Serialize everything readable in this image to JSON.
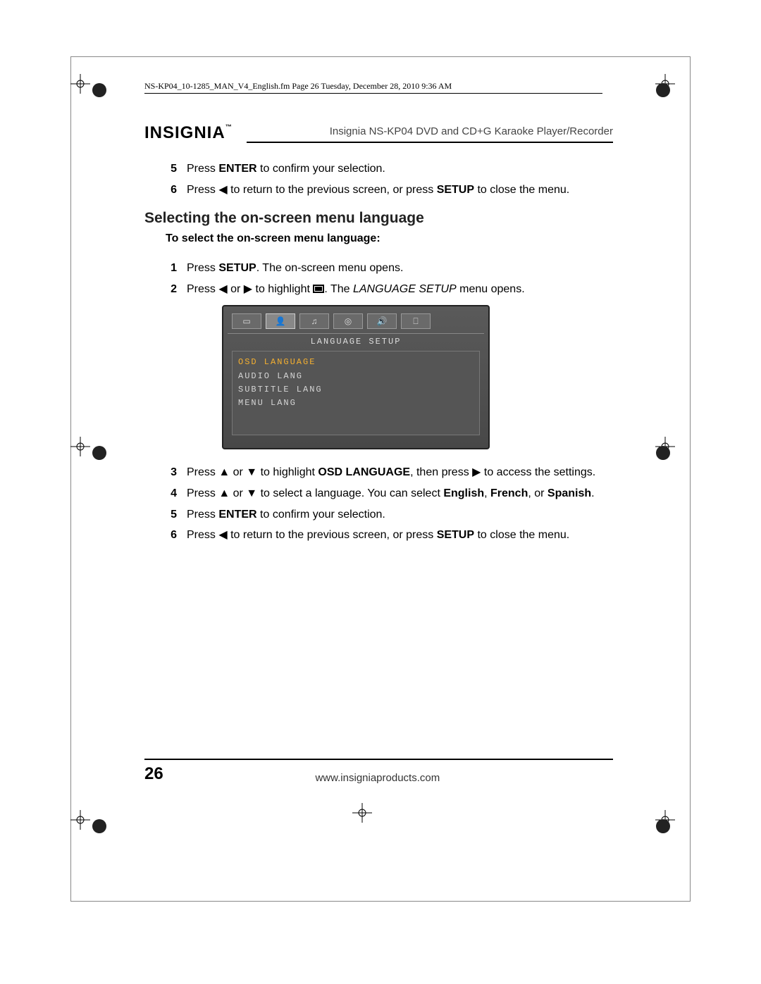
{
  "meta": {
    "header_line": "NS-KP04_10-1285_MAN_V4_English.fm  Page 26  Tuesday, December 28, 2010  9:36 AM"
  },
  "brand": {
    "name": "INSIGNIA",
    "tm": "™",
    "product": "Insignia NS-KP04 DVD and CD+G Karaoke Player/Recorder"
  },
  "intro_steps": [
    {
      "n": "5",
      "html": "Press <b>ENTER</b> to confirm your selection."
    },
    {
      "n": "6",
      "html": "Press ◀ to return to the previous screen, or press <b>SETUP</b> to close the menu."
    }
  ],
  "section_title": "Selecting the on-screen menu language",
  "subhead": "To select the on-screen menu language:",
  "steps_a": [
    {
      "n": "1",
      "html": "Press <b>SETUP</b>. The on-screen menu opens."
    },
    {
      "n": "2",
      "html": "Press ◀ or ▶ to highlight <span class='icon-lang' data-name='language-icon' data-interactable='false'></span>. The <i>LANGUAGE SETUP</i> menu opens."
    }
  ],
  "screenshot": {
    "title": "LANGUAGE SETUP",
    "tabs_count": 6,
    "active_tab_index": 1,
    "items": [
      "OSD LANGUAGE",
      "AUDIO LANG",
      "SUBTITLE LANG",
      "MENU LANG"
    ],
    "highlight_index": 0,
    "bg_color": "#555555",
    "text_color": "#d5d5d5",
    "highlight_color": "#f5b030"
  },
  "steps_b": [
    {
      "n": "3",
      "html": "Press ▲ or ▼ to highlight <b>OSD LANGUAGE</b>, then press ▶ to access the settings."
    },
    {
      "n": "4",
      "html": "Press ▲ or ▼ to select a language. You can select <b>English</b>, <b>French</b>, or <b>Spanish</b>."
    },
    {
      "n": "5",
      "html": "Press <b>ENTER</b> to confirm your selection."
    },
    {
      "n": "6",
      "html": "Press ◀ to return to the previous screen, or press <b>SETUP</b> to close the menu."
    }
  ],
  "footer": {
    "page": "26",
    "url": "www.insigniaproducts.com"
  }
}
